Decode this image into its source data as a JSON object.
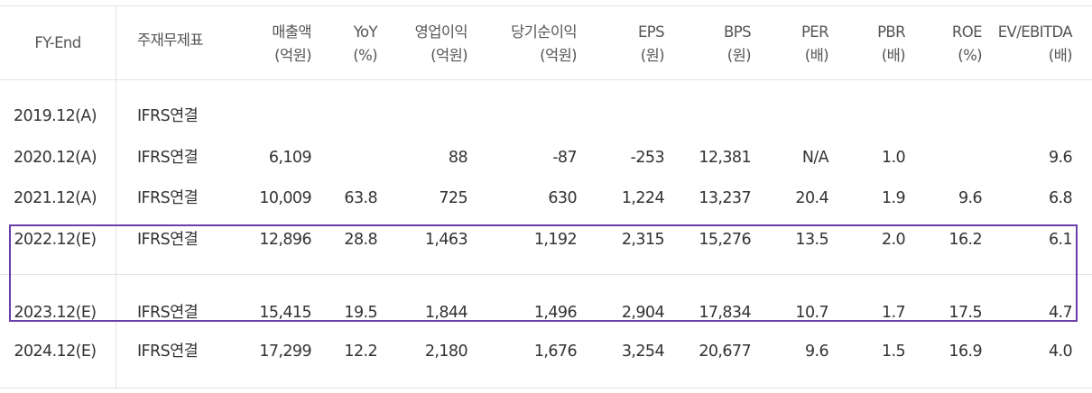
{
  "header": {
    "fy_end": "FY-End",
    "statement_type": "주재무제표",
    "columns": [
      {
        "line1": "매출액",
        "line2": "(억원)"
      },
      {
        "line1": "YoY",
        "line2": "(%)"
      },
      {
        "line1": "영업이익",
        "line2": "(억원)"
      },
      {
        "line1": "당기순이익",
        "line2": "(억원)"
      },
      {
        "line1": "EPS",
        "line2": "(원)"
      },
      {
        "line1": "BPS",
        "line2": "(원)"
      },
      {
        "line1": "PER",
        "line2": "(배)"
      },
      {
        "line1": "PBR",
        "line2": "(배)"
      },
      {
        "line1": "ROE",
        "line2": "(%)"
      },
      {
        "line1": "EV/EBITDA",
        "line2": "(배)"
      }
    ]
  },
  "rows": [
    {
      "fy": "2019.12(A)",
      "type": "IFRS연결",
      "values": [
        "",
        "",
        "",
        "",
        "",
        "",
        "",
        "",
        "",
        ""
      ]
    },
    {
      "fy": "2020.12(A)",
      "type": "IFRS연결",
      "values": [
        "6,109",
        "",
        "88",
        "-87",
        "-253",
        "12,381",
        "N/A",
        "1.0",
        "",
        "9.6"
      ]
    },
    {
      "fy": "2021.12(A)",
      "type": "IFRS연결",
      "values": [
        "10,009",
        "63.8",
        "725",
        "630",
        "1,224",
        "13,237",
        "20.4",
        "1.9",
        "9.6",
        "6.8"
      ]
    },
    {
      "fy": "2022.12(E)",
      "type": "IFRS연결",
      "values": [
        "12,896",
        "28.8",
        "1,463",
        "1,192",
        "2,315",
        "15,276",
        "13.5",
        "2.0",
        "16.2",
        "6.1"
      ]
    },
    {
      "fy": "2023.12(E)",
      "type": "IFRS연결",
      "values": [
        "15,415",
        "19.5",
        "1,844",
        "1,496",
        "2,904",
        "17,834",
        "10.7",
        "1.7",
        "17.5",
        "4.7"
      ]
    },
    {
      "fy": "2024.12(E)",
      "type": "IFRS연결",
      "values": [
        "17,299",
        "12.2",
        "2,180",
        "1,676",
        "3,254",
        "20,677",
        "9.6",
        "1.5",
        "16.9",
        "4.0"
      ]
    }
  ],
  "highlight_color": "#6a3fa8"
}
